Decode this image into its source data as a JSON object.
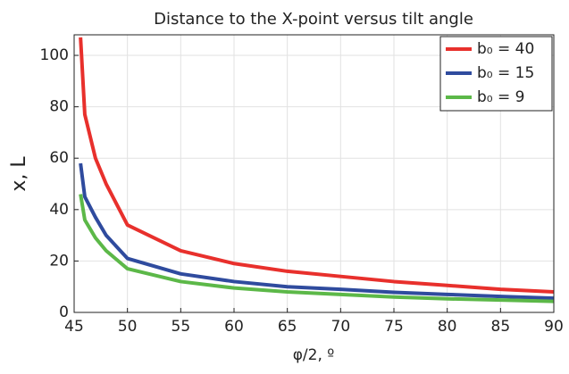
{
  "chart_data": {
    "type": "line",
    "title": "Distance to the X-point versus tilt angle",
    "xlabel": "φ/2, º",
    "ylabel": "x, L",
    "x": [
      45.6,
      46,
      47,
      48,
      50,
      55,
      60,
      65,
      70,
      75,
      80,
      85,
      90
    ],
    "series": [
      {
        "name": "b₀ = 40",
        "color": "#e8302c",
        "values": [
          107,
          77,
          60,
          50,
          34,
          24,
          19,
          16,
          14,
          12,
          10.5,
          9,
          8
        ]
      },
      {
        "name": "b₀ = 15",
        "color": "#2f4b9e",
        "values": [
          58,
          45,
          37,
          30,
          21,
          15,
          12,
          10,
          9,
          7.8,
          7,
          6.2,
          5.5
        ]
      },
      {
        "name": "b₀ = 9",
        "color": "#5cb848",
        "values": [
          46,
          36,
          29,
          24,
          17,
          12,
          9.5,
          8,
          7,
          6,
          5.3,
          4.8,
          4.3
        ]
      }
    ],
    "xlim": [
      45,
      90
    ],
    "xticks": [
      45,
      50,
      55,
      60,
      65,
      70,
      75,
      80,
      85,
      90
    ],
    "ylim": [
      0,
      108
    ],
    "yticks": [
      0,
      20,
      40,
      60,
      80,
      100
    ],
    "grid": true,
    "legend": "top-right"
  }
}
